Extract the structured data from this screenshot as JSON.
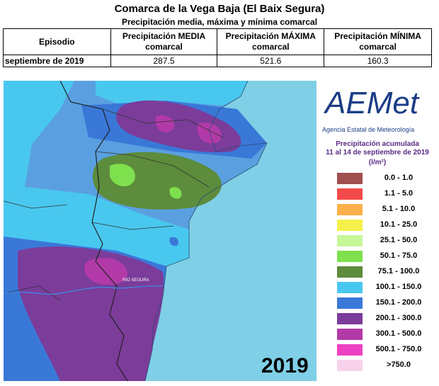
{
  "header": {
    "title": "Comarca de la Vega Baja (El Baix Segura)",
    "subtitle": "Precipitación media, máxima y mínima comarcal"
  },
  "table": {
    "headers": [
      "Episodio",
      "Precipitación MEDIA comarcal",
      "Precipitación MÁXIMA comarcal",
      "Precipitación MÍNIMA comarcal"
    ],
    "row": {
      "episode": "septiembre de 2019",
      "mean": "287.5",
      "max": "521.6",
      "min": "160.3"
    }
  },
  "map": {
    "year": "2019",
    "river_label": "RÍO SEGURA",
    "sea_color": "#7fcfe6"
  },
  "legend": {
    "logo_text": "AEMet",
    "agency": "Agencia Estatal de Meteorología",
    "title_line1": "Precipitación acumulada",
    "title_line2": "11 al 14 de septiembre de 2019",
    "unit": "(l/m²)",
    "classes": [
      {
        "label": "0.0 - 1.0",
        "color": "#a0504f"
      },
      {
        "label": "1.1 - 5.0",
        "color": "#f24a4a"
      },
      {
        "label": "5.1 - 10.0",
        "color": "#fcb04a"
      },
      {
        "label": "10.1 - 25.0",
        "color": "#f6f04a"
      },
      {
        "label": "25.1 - 50.0",
        "color": "#c8f79a"
      },
      {
        "label": "50.1 - 75.0",
        "color": "#7fe04e"
      },
      {
        "label": "75.1 - 100.0",
        "color": "#5c8c3c"
      },
      {
        "label": "100.1 - 150.0",
        "color": "#49c8ef"
      },
      {
        "label": "150.1 - 200.0",
        "color": "#3a78d8"
      },
      {
        "label": "200.1 - 300.0",
        "color": "#7b3c9a"
      },
      {
        "label": "300.1 - 500.0",
        "color": "#b23aa8"
      },
      {
        "label": "500.1 - 750.0",
        "color": "#ee40c2"
      },
      {
        "label": ">750.0",
        "color": "#f8d2ec"
      }
    ]
  }
}
